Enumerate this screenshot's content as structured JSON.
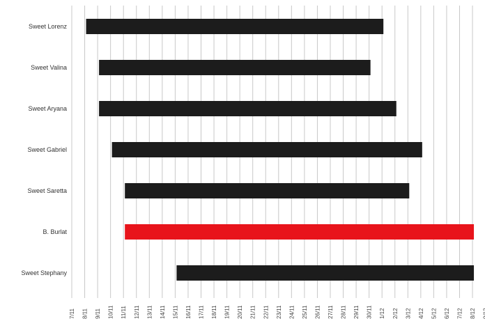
{
  "chart_data": {
    "type": "bar",
    "orientation": "horizontal-range",
    "title": "",
    "xlabel": "",
    "ylabel": "",
    "tick_labels": [
      "7/11",
      "8/11",
      "9/11",
      "10/11",
      "11/11",
      "12/11",
      "13/11",
      "14/11",
      "15/11",
      "16/11",
      "17/11",
      "18/11",
      "19/11",
      "20/11",
      "21/11",
      "22/11",
      "23/11",
      "24/11",
      "25/11",
      "26/11",
      "27/11",
      "28/11",
      "29/11",
      "30/11",
      "1/12",
      "2/12",
      "3/12",
      "4/12",
      "5/12",
      "6/12",
      "7/12",
      "8/12",
      "9/12"
    ],
    "grid": true,
    "categories": [
      "Sweet Lorenz",
      "Sweet Valina",
      "Sweet Aryana",
      "Sweet Gabriel",
      "Sweet Saretta",
      "B. Burlat",
      "Sweet Stephany"
    ],
    "series": [
      {
        "label": "Sweet Lorenz",
        "start": "8/11",
        "end": "31/11",
        "color": "#1c1c1c"
      },
      {
        "label": "Sweet Valina",
        "start": "9/11",
        "end": "30/11",
        "color": "#1c1c1c"
      },
      {
        "label": "Sweet Aryana",
        "start": "9/11",
        "end": "2/12",
        "color": "#1c1c1c"
      },
      {
        "label": "Sweet Gabriel",
        "start": "10/11",
        "end": "4/12",
        "color": "#1c1c1c"
      },
      {
        "label": "Sweet Saretta",
        "start": "11/11",
        "end": "3/12",
        "color": "#1c1c1c"
      },
      {
        "label": "B. Burlat",
        "start": "11/11",
        "end": "8/12",
        "color": "#e8141b"
      },
      {
        "label": "Sweet Stephany",
        "start": "15/11",
        "end": "8/12",
        "color": "#1c1c1c"
      }
    ],
    "colors": {
      "bar": "#1c1c1c",
      "highlight": "#e8141b",
      "grid": "#c8c8c8"
    }
  }
}
